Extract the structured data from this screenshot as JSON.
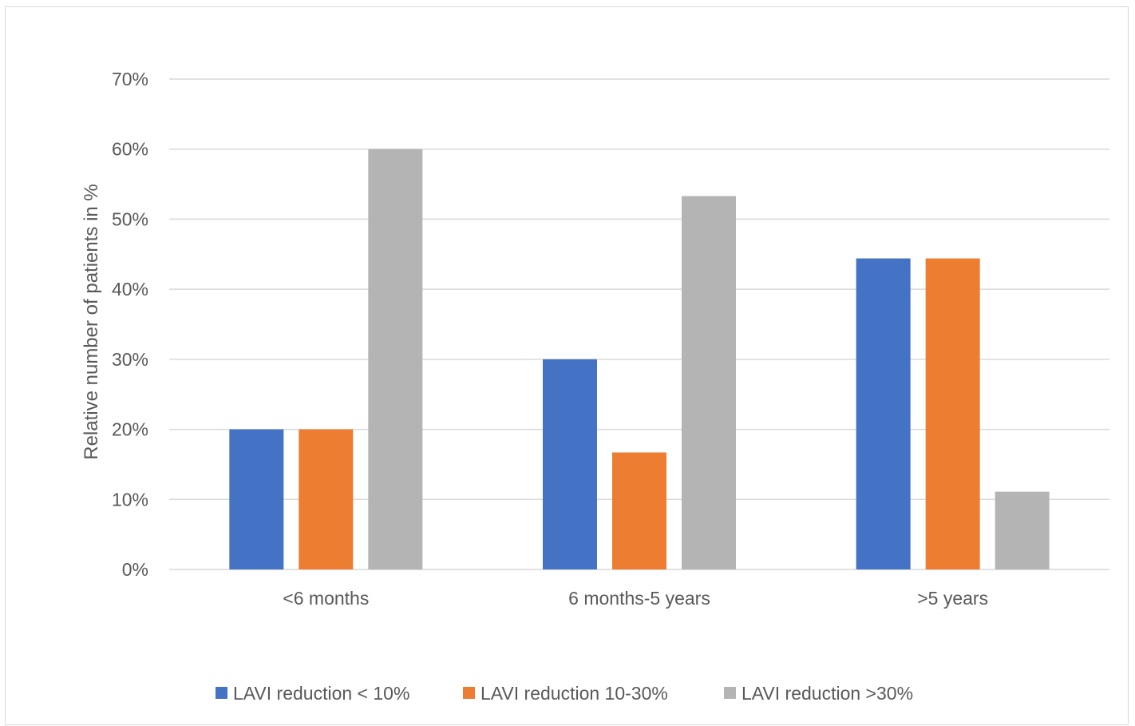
{
  "chart_data": {
    "type": "bar",
    "title": "",
    "xlabel": "",
    "ylabel": "Relative number of patients in %",
    "categories": [
      "<6 months",
      "6 months-5 years",
      ">5 years"
    ],
    "series": [
      {
        "name": "LAVI reduction < 10%",
        "color": "#4472C4",
        "values": [
          20,
          30,
          44.4
        ]
      },
      {
        "name": "LAVI reduction 10-30%",
        "color": "#ED7D31",
        "values": [
          20,
          16.7,
          44.4
        ]
      },
      {
        "name": "LAVI reduction >30%",
        "color": "#B4B4B4",
        "values": [
          60,
          53.3,
          11.1
        ]
      }
    ],
    "ylim": [
      0,
      70
    ],
    "yticks": [
      0,
      10,
      20,
      30,
      40,
      50,
      60,
      70
    ],
    "ytick_labels": [
      "0%",
      "10%",
      "20%",
      "30%",
      "40%",
      "50%",
      "60%",
      "70%"
    ],
    "grid": true,
    "gridline_color": "#d9d9d9",
    "legend_position": "bottom"
  }
}
